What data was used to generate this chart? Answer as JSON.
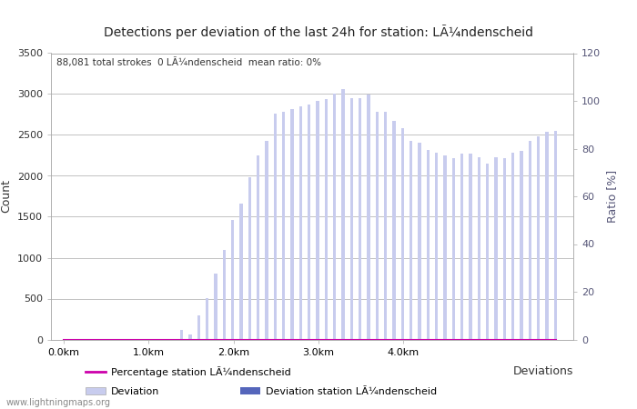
{
  "title": "Detections per deviation of the last 24h for station: LÃ¼ndenscheid",
  "subtitle_parts": [
    "88,081 total strokes",
    "0 LÃ¼ndenscheid",
    "mean ratio: 0%"
  ],
  "ylabel_left": "Count",
  "ylabel_right": "Ratio [%]",
  "xlabel": "Deviations",
  "ylim_left": [
    0,
    3500
  ],
  "ylim_right": [
    0,
    120
  ],
  "yticks_left": [
    0,
    500,
    1000,
    1500,
    2000,
    2500,
    3000,
    3500
  ],
  "yticks_right": [
    0,
    20,
    40,
    60,
    80,
    100,
    120
  ],
  "bar_color_light": "#c8ccee",
  "bar_color_dark": "#5566bb",
  "line_color": "#cc00aa",
  "watermark": "www.lightningmaps.org",
  "x_tick_km": [
    0.0,
    1.0,
    2.0,
    3.0,
    4.0
  ],
  "x_tick_labels": [
    "0.0km",
    "1.0km",
    "2.0km",
    "3.0km",
    "4.0km"
  ],
  "background_color": "#ffffff",
  "grid_color": "#aaaaaa",
  "total_counts": [
    0,
    0,
    0,
    0,
    0,
    0,
    0,
    0,
    0,
    0,
    0,
    0,
    0,
    0,
    120,
    60,
    300,
    510,
    810,
    1100,
    1460,
    1660,
    1980,
    2250,
    2430,
    2760,
    2780,
    2820,
    2850,
    2870,
    2920,
    2940,
    3000,
    3060,
    2950,
    2950,
    2990,
    2780,
    2780,
    2670,
    2580,
    2430,
    2400,
    2320,
    2280,
    2250,
    2220,
    2270,
    2270,
    2230,
    2150,
    2230,
    2220,
    2280,
    2310,
    2430,
    2480,
    2540,
    2550
  ],
  "station_counts": [
    0,
    0,
    0,
    0,
    0,
    0,
    0,
    0,
    0,
    0,
    0,
    0,
    0,
    0,
    0,
    0,
    0,
    0,
    0,
    0,
    0,
    0,
    0,
    0,
    0,
    0,
    0,
    0,
    0,
    0,
    0,
    0,
    0,
    0,
    0,
    0,
    0,
    0,
    0,
    0,
    0,
    0,
    0,
    0,
    0,
    0,
    0,
    0,
    0,
    0,
    0,
    0,
    0,
    0,
    0,
    0,
    0,
    0,
    0
  ],
  "km_step": 0.1,
  "start_km": 0.0
}
